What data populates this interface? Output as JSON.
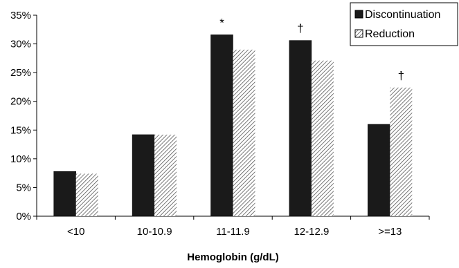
{
  "chart_data": {
    "type": "bar",
    "categories": [
      "<10",
      "10-10.9",
      "11-11.9",
      "12-12.9",
      ">=13"
    ],
    "series": [
      {
        "name": "Discontinuation",
        "values": [
          7.8,
          14.2,
          31.6,
          30.6,
          16.0
        ],
        "color": "#1a1a1a",
        "pattern": "solid"
      },
      {
        "name": "Reduction",
        "values": [
          7.4,
          14.2,
          29.0,
          27.1,
          22.4
        ],
        "color": "#ffffff",
        "pattern": "diagonal-hatch"
      }
    ],
    "annotations": [
      {
        "category": "11-11.9",
        "text": "*"
      },
      {
        "category": "12-12.9",
        "text": "†"
      },
      {
        "category": ">=13",
        "text": "†"
      }
    ],
    "title": "",
    "xlabel": "Hemoglobin (g/dL)",
    "ylabel": "",
    "ylim": [
      0,
      35
    ],
    "yticks": [
      "0%",
      "5%",
      "10%",
      "15%",
      "20%",
      "25%",
      "30%",
      "35%"
    ],
    "ytick_values": [
      0,
      5,
      10,
      15,
      20,
      25,
      30,
      35
    ],
    "grid": false,
    "legend_position": "top-right"
  }
}
